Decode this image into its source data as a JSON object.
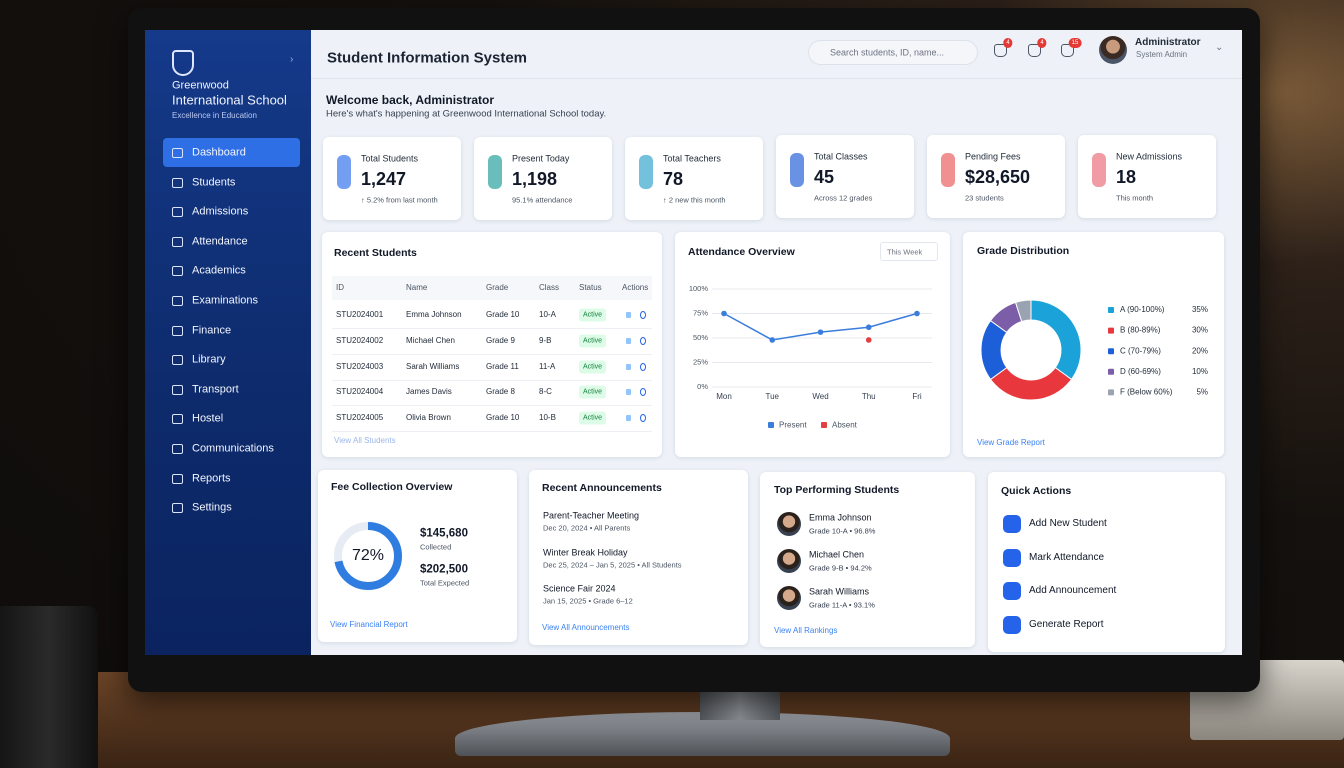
{
  "sidebar": {
    "school": [
      "Greenwood",
      "International School",
      "Excellence in Education"
    ],
    "menu": [
      "Dashboard",
      "Students",
      "Admissions",
      "Attendance",
      "Academics",
      "Examinations",
      "Finance",
      "Library",
      "Transport",
      "Hostel",
      "Communications",
      "Reports",
      "Settings"
    ]
  },
  "header": {
    "title": "Student Information System",
    "search_placeholder": "Search students, ID, name...",
    "badges": [
      4,
      4,
      15
    ],
    "user_name": "Administrator",
    "user_role": "System Admin"
  },
  "welcome": {
    "title": "Welcome back, Administrator",
    "subtitle": "Here's what's happening at Greenwood International School today."
  },
  "stats": [
    {
      "label": "Total Students",
      "value": "1,247",
      "note": "↑ 5.2% from last month",
      "color": "#5b8def"
    },
    {
      "label": "Present Today",
      "value": "1,198",
      "note": "95.1% attendance",
      "color": "#4fb3b0"
    },
    {
      "label": "Total Teachers",
      "value": "78",
      "note": "↑ 2 new this month",
      "color": "#5bb6d6"
    },
    {
      "label": "Total Classes",
      "value": "45",
      "note": "Across 12 grades",
      "color": "#4f7fe0"
    },
    {
      "label": "Pending Fees",
      "value": "$28,650",
      "note": "23 students",
      "color": "#ef7d7d"
    },
    {
      "label": "New Admissions",
      "value": "18",
      "note": "This month",
      "color": "#ee8a94"
    }
  ],
  "recent_students": {
    "title": "Recent Students",
    "columns": [
      "ID",
      "Name",
      "Grade",
      "Class",
      "Status",
      "Actions"
    ],
    "rows": [
      [
        "STU2024001",
        "Emma Johnson",
        "Grade 10",
        "10-A",
        "Active"
      ],
      [
        "STU2024002",
        "Michael Chen",
        "Grade 9",
        "9-B",
        "Active"
      ],
      [
        "STU2024003",
        "Sarah Williams",
        "Grade 11",
        "11-A",
        "Active"
      ],
      [
        "STU2024004",
        "James Davis",
        "Grade 8",
        "8-C",
        "Active"
      ],
      [
        "STU2024005",
        "Olivia Brown",
        "Grade 10",
        "10-B",
        "Active"
      ]
    ],
    "link": "View All Students"
  },
  "attendance": {
    "type": "line",
    "title": "Attendance Overview",
    "filter": "This Week",
    "categories": [
      "Mon",
      "Tue",
      "Wed",
      "Thu",
      "Fri"
    ],
    "ylim": [
      0,
      100
    ],
    "yticks": [
      {
        "value": 0,
        "label": "0%"
      },
      {
        "value": 25,
        "label": "25%"
      },
      {
        "value": 50,
        "label": "50%"
      },
      {
        "value": 75,
        "label": "75%"
      },
      {
        "value": 100,
        "label": "100%"
      }
    ],
    "grid": true,
    "series": [
      {
        "name": "Present",
        "color": "#3b7ddd",
        "values": [
          75,
          48,
          56,
          61,
          75
        ]
      },
      {
        "name": "Absent",
        "color": "#e53e3e",
        "values": [
          null,
          null,
          null,
          48,
          null
        ]
      }
    ]
  },
  "grades": {
    "type": "pie",
    "title": "Grade Distribution",
    "categories": [
      "A (90-100%)",
      "B (80-89%)",
      "C (70-79%)",
      "D (60-69%)",
      "F (Below 60%)"
    ],
    "values": [
      35,
      30,
      20,
      10,
      5
    ],
    "value_labels": [
      "35%",
      "30%",
      "20%",
      "10%",
      "5%"
    ],
    "colors": [
      "#1ba3d9",
      "#e8383d",
      "#1d5fd8",
      "#7b5ea7",
      "#9aa3b2"
    ],
    "link": "View Grade Report"
  },
  "fees": {
    "title": "Fee Collection Overview",
    "percent": 72,
    "percent_label": "72%",
    "collected": "$145,680",
    "collected_label": "Collected",
    "expected": "$202,500",
    "expected_label": "Total Expected",
    "link": "View Financial Report"
  },
  "announcements": {
    "title": "Recent Announcements",
    "items": [
      {
        "title": "Parent-Teacher Meeting",
        "meta": "Dec 20, 2024 • All Parents"
      },
      {
        "title": "Winter Break Holiday",
        "meta": "Dec 25, 2024 – Jan 5, 2025 • All Students"
      },
      {
        "title": "Science Fair 2024",
        "meta": "Jan 15, 2025 • Grade 6–12"
      }
    ],
    "link": "View All Announcements"
  },
  "top_students": {
    "title": "Top Performing Students",
    "students": [
      {
        "name": "Emma Johnson",
        "meta": "Grade 10-A • 96.8%"
      },
      {
        "name": "Michael Chen",
        "meta": "Grade 9-B • 94.2%"
      },
      {
        "name": "Sarah Williams",
        "meta": "Grade 11-A • 93.1%"
      }
    ],
    "link": "View All Rankings"
  },
  "quick_actions": {
    "title": "Quick Actions",
    "actions": [
      "Add New Student",
      "Mark Attendance",
      "Add Announcement",
      "Generate Report"
    ]
  }
}
